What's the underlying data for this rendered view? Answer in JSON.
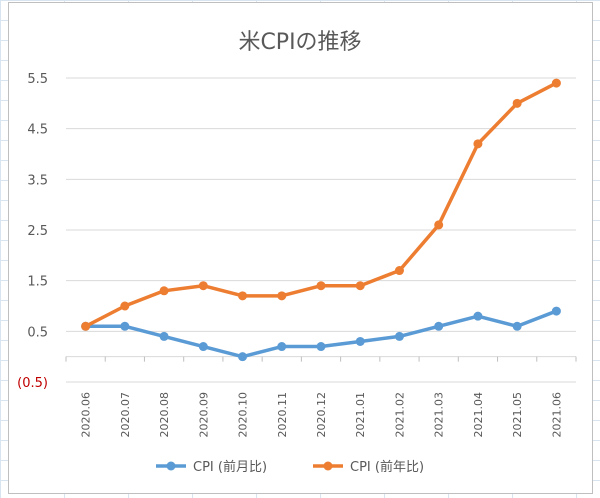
{
  "chart_data": {
    "type": "line",
    "title": "米CPIの推移",
    "categories": [
      "2020.06",
      "2020.07",
      "2020.08",
      "2020.09",
      "2020.10",
      "2020.11",
      "2020.12",
      "2021.01",
      "2021.02",
      "2021.03",
      "2021.04",
      "2021.05",
      "2021.06"
    ],
    "series": [
      {
        "name": "CPI (前月比)",
        "color": "#5b9bd5",
        "values": [
          0.6,
          0.6,
          0.4,
          0.2,
          0.0,
          0.2,
          0.2,
          0.3,
          0.4,
          0.6,
          0.8,
          0.6,
          0.9
        ]
      },
      {
        "name": "CPI (前年比)",
        "color": "#ed7d31",
        "values": [
          0.6,
          1.0,
          1.3,
          1.4,
          1.2,
          1.2,
          1.4,
          1.4,
          1.7,
          2.6,
          4.2,
          5.0,
          5.4
        ]
      }
    ],
    "yticks": [
      {
        "value": 5.5,
        "label": "5.5"
      },
      {
        "value": 4.5,
        "label": "4.5"
      },
      {
        "value": 3.5,
        "label": "3.5"
      },
      {
        "value": 2.5,
        "label": "2.5"
      },
      {
        "value": 1.5,
        "label": "1.5"
      },
      {
        "value": 0.5,
        "label": "0.5"
      },
      {
        "value": -0.5,
        "label": "(0.5)"
      }
    ],
    "ylim": [
      -0.5,
      5.5
    ],
    "grid": true,
    "legend": "bottom"
  }
}
